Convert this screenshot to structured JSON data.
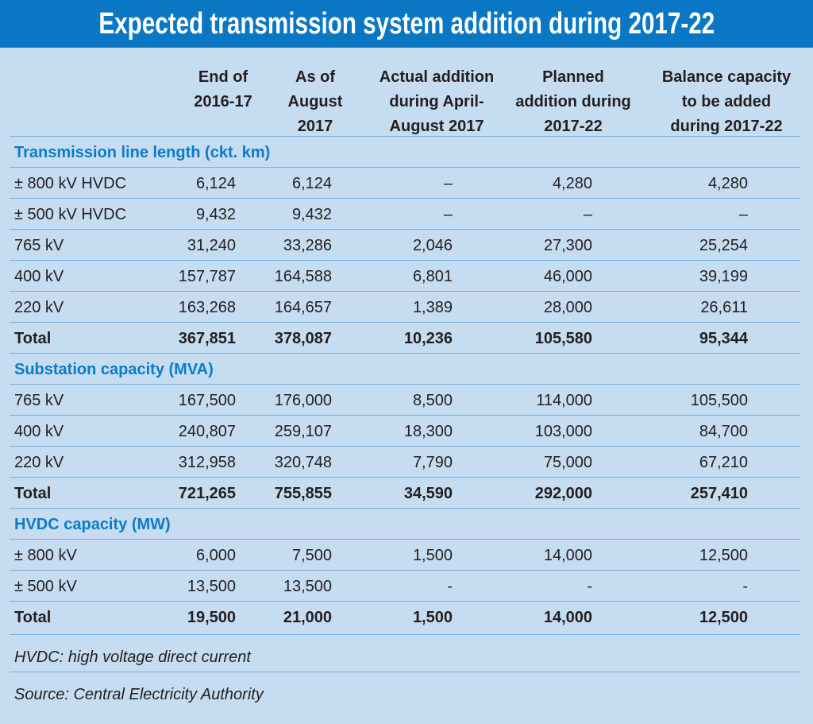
{
  "title": "Expected transmission system addition during 2017-22",
  "columns": [
    "End of\n2016-17",
    "As of\nAugust\n2017",
    "Actual addition\nduring April-\nAugust 2017",
    "Planned\naddition during\n2017-22",
    "Balance capacity\nto be added\nduring 2017-22"
  ],
  "sections": [
    {
      "title": "Transmission line length (ckt. km)",
      "rows": [
        {
          "label": "± 800 kV HVDC",
          "values": [
            "6,124",
            "6,124",
            "–",
            "4,280",
            "4,280"
          ]
        },
        {
          "label": "± 500 kV HVDC",
          "values": [
            "9,432",
            "9,432",
            "–",
            "–",
            "–"
          ]
        },
        {
          "label": "765 kV",
          "values": [
            "31,240",
            "33,286",
            "2,046",
            "27,300",
            "25,254"
          ]
        },
        {
          "label": "400 kV",
          "values": [
            "157,787",
            "164,588",
            "6,801",
            "46,000",
            "39,199"
          ]
        },
        {
          "label": "220 kV",
          "values": [
            "163,268",
            "164,657",
            "1,389",
            "28,000",
            "26,611"
          ]
        },
        {
          "label": "Total",
          "values": [
            "367,851",
            "378,087",
            "10,236",
            "105,580",
            "95,344"
          ],
          "total": true
        }
      ]
    },
    {
      "title": "Substation capacity (MVA)",
      "rows": [
        {
          "label": "765 kV",
          "values": [
            "167,500",
            "176,000",
            "8,500",
            "114,000",
            "105,500"
          ]
        },
        {
          "label": "400 kV",
          "values": [
            "240,807",
            "259,107",
            "18,300",
            "103,000",
            "84,700"
          ]
        },
        {
          "label": "220 kV",
          "values": [
            "312,958",
            "320,748",
            "7,790",
            "75,000",
            "67,210"
          ]
        },
        {
          "label": "Total",
          "values": [
            "721,265",
            "755,855",
            "34,590",
            "292,000",
            "257,410"
          ],
          "total": true
        }
      ]
    },
    {
      "title": "HVDC capacity (MW)",
      "rows": [
        {
          "label": "± 800 kV",
          "values": [
            "6,000",
            "7,500",
            "1,500",
            "14,000",
            "12,500"
          ]
        },
        {
          "label": "± 500 kV",
          "values": [
            "13,500",
            "13,500",
            "-",
            "-",
            "-"
          ]
        },
        {
          "label": "Total",
          "values": [
            "19,500",
            "21,000",
            "1,500",
            "14,000",
            "12,500"
          ],
          "total": true
        }
      ]
    }
  ],
  "footnote": "HVDC: high voltage direct current",
  "source": "Source: Central Electricity Authority",
  "colors": {
    "header_bar": "#0a77c4",
    "background": "#c6dcf1",
    "section_text": "#0a7cc8",
    "rule": "#74afe0"
  }
}
